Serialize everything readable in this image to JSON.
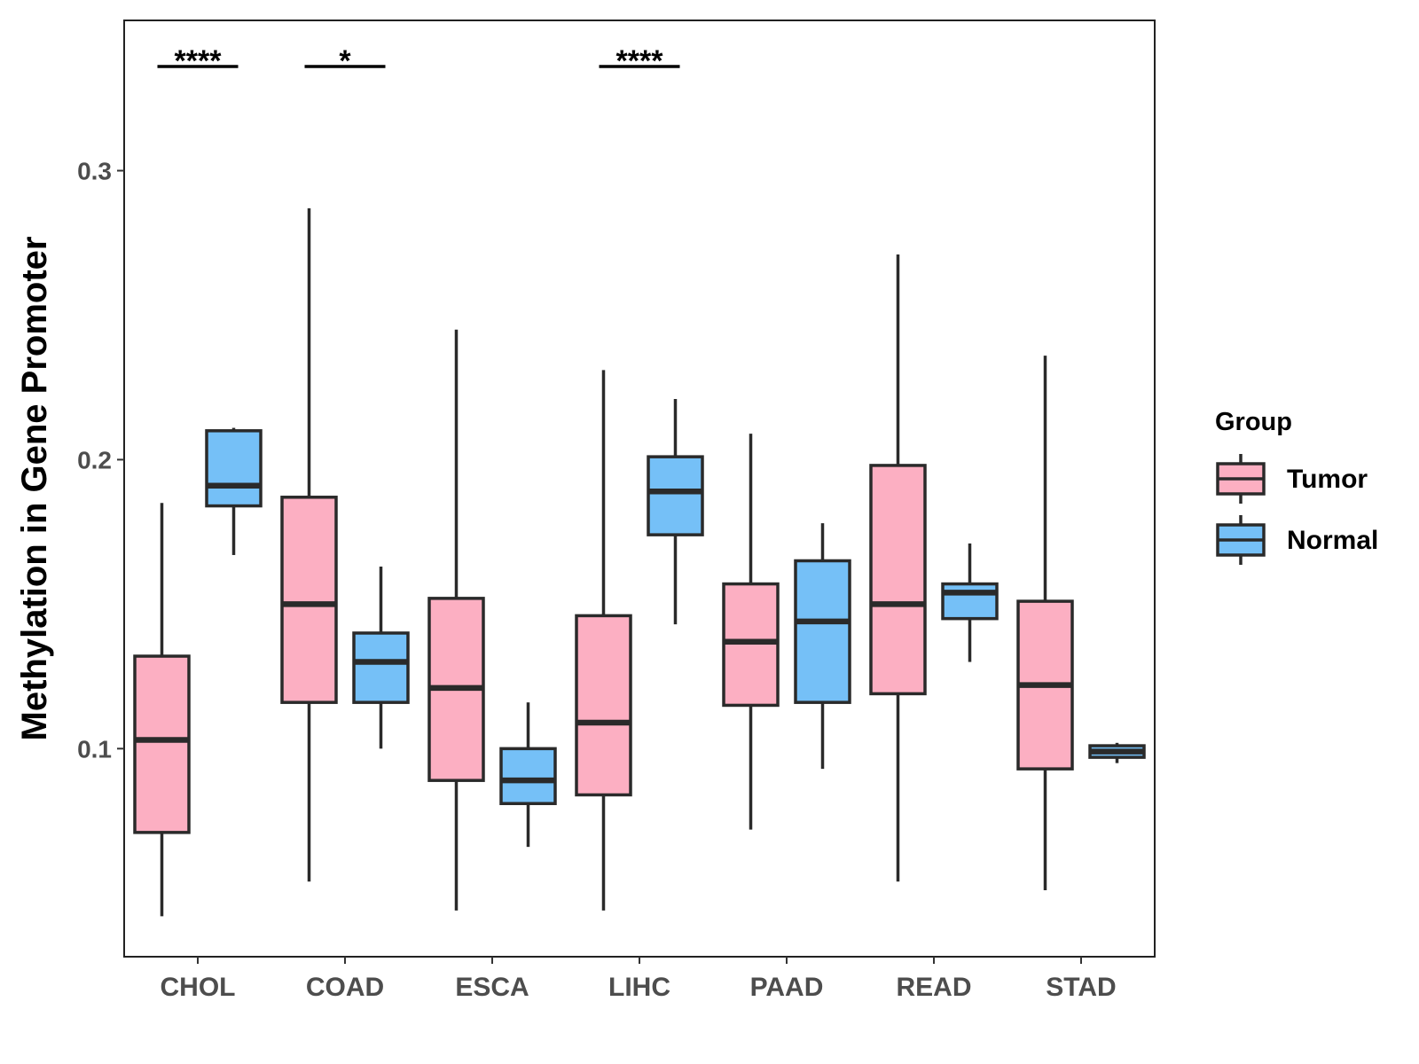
{
  "chart_data": {
    "type": "boxplot",
    "title": "",
    "xlabel": "",
    "ylabel": "Methylation in Gene Promoter",
    "ylim": [
      0.028,
      0.352
    ],
    "yticks": [
      0.1,
      0.2,
      0.3
    ],
    "ytick_labels": [
      "0.1",
      "0.2",
      "0.3"
    ],
    "categories": [
      "CHOL",
      "COAD",
      "ESCA",
      "LIHC",
      "PAAD",
      "READ",
      "STAD"
    ],
    "legend": {
      "title": "Group",
      "position": "right",
      "entries": [
        {
          "name": "Tumor",
          "color": "#fcafc2"
        },
        {
          "name": "Normal",
          "color": "#75c0f7"
        }
      ]
    },
    "series": [
      {
        "name": "Tumor",
        "color": "#fcafc2",
        "boxes": [
          {
            "category": "CHOL",
            "min": 0.042,
            "q1": 0.071,
            "median": 0.103,
            "q3": 0.132,
            "max": 0.185
          },
          {
            "category": "COAD",
            "min": 0.054,
            "q1": 0.116,
            "median": 0.15,
            "q3": 0.187,
            "max": 0.287
          },
          {
            "category": "ESCA",
            "min": 0.044,
            "q1": 0.089,
            "median": 0.121,
            "q3": 0.152,
            "max": 0.245
          },
          {
            "category": "LIHC",
            "min": 0.044,
            "q1": 0.084,
            "median": 0.109,
            "q3": 0.146,
            "max": 0.231
          },
          {
            "category": "PAAD",
            "min": 0.072,
            "q1": 0.115,
            "median": 0.137,
            "q3": 0.157,
            "max": 0.209
          },
          {
            "category": "READ",
            "min": 0.054,
            "q1": 0.119,
            "median": 0.15,
            "q3": 0.198,
            "max": 0.271
          },
          {
            "category": "STAD",
            "min": 0.051,
            "q1": 0.093,
            "median": 0.122,
            "q3": 0.151,
            "max": 0.236
          }
        ]
      },
      {
        "name": "Normal",
        "color": "#75c0f7",
        "boxes": [
          {
            "category": "CHOL",
            "min": 0.167,
            "q1": 0.184,
            "median": 0.191,
            "q3": 0.21,
            "max": 0.211
          },
          {
            "category": "COAD",
            "min": 0.1,
            "q1": 0.116,
            "median": 0.13,
            "q3": 0.14,
            "max": 0.163
          },
          {
            "category": "ESCA",
            "min": 0.066,
            "q1": 0.081,
            "median": 0.089,
            "q3": 0.1,
            "max": 0.116
          },
          {
            "category": "LIHC",
            "min": 0.143,
            "q1": 0.174,
            "median": 0.189,
            "q3": 0.201,
            "max": 0.221
          },
          {
            "category": "PAAD",
            "min": 0.093,
            "q1": 0.116,
            "median": 0.144,
            "q3": 0.165,
            "max": 0.178
          },
          {
            "category": "READ",
            "min": 0.13,
            "q1": 0.145,
            "median": 0.154,
            "q3": 0.157,
            "max": 0.171
          },
          {
            "category": "STAD",
            "min": 0.095,
            "q1": 0.097,
            "median": 0.099,
            "q3": 0.101,
            "max": 0.102
          }
        ]
      }
    ],
    "annotations": [
      {
        "category": "CHOL",
        "label": "****"
      },
      {
        "category": "COAD",
        "label": "*"
      },
      {
        "category": "LIHC",
        "label": "****"
      }
    ],
    "grid": false
  }
}
